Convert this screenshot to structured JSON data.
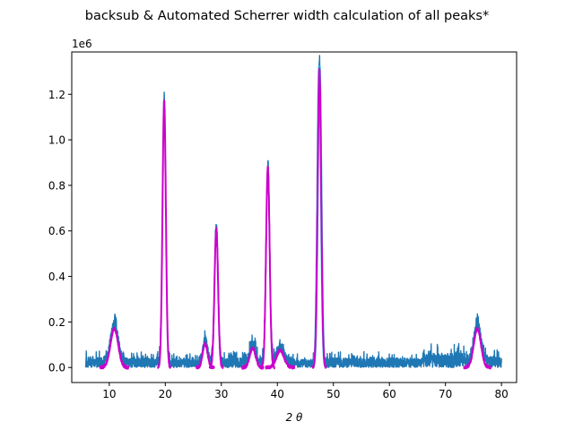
{
  "chart_data": {
    "type": "line",
    "title": "backsub & Automated Scherrer width calculation of all peaks*",
    "xlabel": "2 θ",
    "ylabel": "",
    "y_offset_label": "1e6",
    "xlim": [
      3.3,
      82.7
    ],
    "ylim": [
      -0.066,
      1.386
    ],
    "x_ticks": [
      10,
      20,
      30,
      40,
      50,
      60,
      70,
      80
    ],
    "x_tick_labels": [
      "10",
      "20",
      "30",
      "40",
      "50",
      "60",
      "70",
      "80"
    ],
    "y_ticks": [
      0.0,
      0.2,
      0.4,
      0.6,
      0.8,
      1.0,
      1.2
    ],
    "y_tick_labels": [
      "0.0",
      "0.2",
      "0.4",
      "0.6",
      "0.8",
      "1.0",
      "1.2"
    ],
    "grid": false,
    "legend": "none",
    "series": [
      {
        "role": "background-subtracted pattern",
        "color": "#1f77b4",
        "x_range": [
          5.8,
          80.0
        ],
        "noise_level": 0.07,
        "noise_bands": [
          {
            "x": [
              5.8,
              9.5
            ],
            "level": 0.075
          },
          {
            "x": [
              20.5,
              25.5
            ],
            "level": 0.06
          },
          {
            "x": [
              39.0,
              46.5
            ],
            "level": 0.06
          },
          {
            "x": [
              56.0,
              58.0
            ],
            "level": 0.075
          },
          {
            "x": [
              65.8,
              73.5
            ],
            "level": 0.105
          },
          {
            "x": [
              76.5,
              79.5
            ],
            "level": 0.085
          }
        ]
      },
      {
        "role": "peak fits",
        "color": "#cc00cc",
        "peaks": [
          {
            "center": 10.9,
            "height": 0.17,
            "width": 1.6
          },
          {
            "center": 19.8,
            "height": 1.17,
            "width": 0.7
          },
          {
            "center": 27.1,
            "height": 0.105,
            "width": 1.0
          },
          {
            "center": 29.1,
            "height": 0.61,
            "width": 0.75
          },
          {
            "center": 35.6,
            "height": 0.085,
            "width": 1.2
          },
          {
            "center": 38.3,
            "height": 0.88,
            "width": 0.75
          },
          {
            "center": 40.5,
            "height": 0.075,
            "width": 1.6
          },
          {
            "center": 47.5,
            "height": 1.31,
            "width": 0.75
          },
          {
            "center": 75.7,
            "height": 0.17,
            "width": 1.5
          }
        ]
      },
      {
        "role": "peak fit outline",
        "color": "#17becf",
        "peaks": [
          {
            "center": 47.5,
            "height": 1.325,
            "width": 0.75
          }
        ]
      }
    ]
  }
}
